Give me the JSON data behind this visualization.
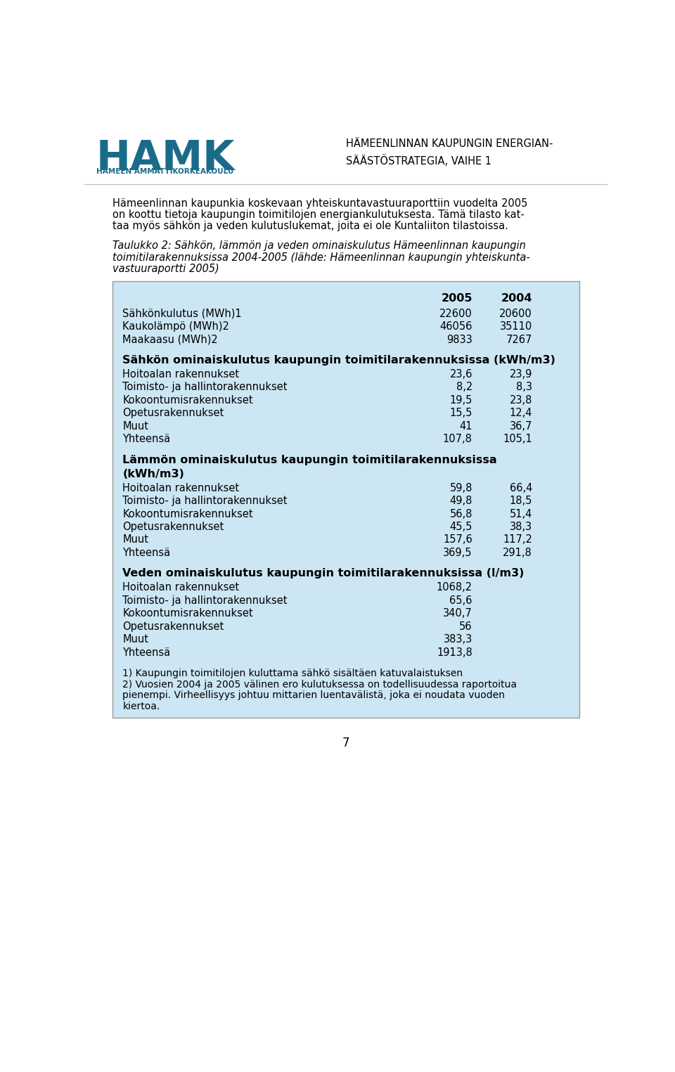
{
  "header_title": "HÄMEENLINNAN KAUPUNGIN ENERGIAN-\nSÄÄSTÖSTRATEGIA, VAIHE 1",
  "hamk_text": "HAMK",
  "hamk_subtext": "HÄMEEN AMMATTIKORKEAKOULU",
  "intro_text": "Hämeenlinnan kaupunkia koskevaan yhteiskuntavastuuraporttiin vuodelta 2005\non koottu tietoja kaupungin toimitilojen energiankulutuksesta. Tämä tilasto kat-\ntaa myös sähkön ja veden kulutuslukemat, joita ei ole Kuntaliiton tilastoissa.",
  "table_title_line1": "Taulukko 2: Sähkön, lämmön ja veden ominaiskulutus Hämeenlinnan kaupungin",
  "table_title_line2": "toimitilarakennuksissa 2004-2005 (lähde: Hämeenlinnan kaupungin yhteiskunta-",
  "table_title_line3": "vastuuraportti 2005)",
  "table_bg": "#cce6f4",
  "section1_rows": [
    [
      "Sähkönkulutus (MWh)1",
      "22600",
      "20600"
    ],
    [
      "Kaukolämpö (MWh)2",
      "46056",
      "35110"
    ],
    [
      "Maakaasu (MWh)2",
      "9833",
      "7267"
    ]
  ],
  "section2_header": "Sähkön ominaiskulutus kaupungin toimitilarakennuksissa (kWh/m3)",
  "section2_rows": [
    [
      "Hoitoalan rakennukset",
      "23,6",
      "23,9"
    ],
    [
      "Toimisto- ja hallintorakennukset",
      "8,2",
      "8,3"
    ],
    [
      "Kokoontumisrakennukset",
      "19,5",
      "23,8"
    ],
    [
      "Opetusrakennukset",
      "15,5",
      "12,4"
    ],
    [
      "Muut",
      "41",
      "36,7"
    ],
    [
      "Yhteensä",
      "107,8",
      "105,1"
    ]
  ],
  "section3_header_line1": "Lämmön ominaiskulutus kaupungin toimitilarakennuksissa",
  "section3_header_line2": "(kWh/m3)",
  "section3_rows": [
    [
      "Hoitoalan rakennukset",
      "59,8",
      "66,4"
    ],
    [
      "Toimisto- ja hallintorakennukset",
      "49,8",
      "18,5"
    ],
    [
      "Kokoontumisrakennukset",
      "56,8",
      "51,4"
    ],
    [
      "Opetusrakennukset",
      "45,5",
      "38,3"
    ],
    [
      "Muut",
      "157,6",
      "117,2"
    ],
    [
      "Yhteensä",
      "369,5",
      "291,8"
    ]
  ],
  "section4_header": "Veden ominaiskulutus kaupungin toimitilarakennuksissa (l/m3)",
  "section4_rows": [
    [
      "Hoitoalan rakennukset",
      "1068,2",
      ""
    ],
    [
      "Toimisto- ja hallintorakennukset",
      "65,6",
      ""
    ],
    [
      "Kokoontumisrakennukset",
      "340,7",
      ""
    ],
    [
      "Opetusrakennukset",
      "56",
      ""
    ],
    [
      "Muut",
      "383,3",
      ""
    ],
    [
      "Yhteensä",
      "1913,8",
      ""
    ]
  ],
  "footnote1": "1) Kaupungin toimitilojen kuluttama sähkö sisältäen katuvalaistuksen",
  "footnote2a": "2) Vuosien 2004 ja 2005 välinen ero kulutuksessa on todellisuudessa raportoitua",
  "footnote2b": "pienempi. Virheellisyys johtuu mittarien luentavälistä, joka ei noudata vuoden",
  "footnote2c": "kiertoa.",
  "page_number": "7",
  "hamk_color": "#1a6b8a",
  "text_color": "#000000"
}
